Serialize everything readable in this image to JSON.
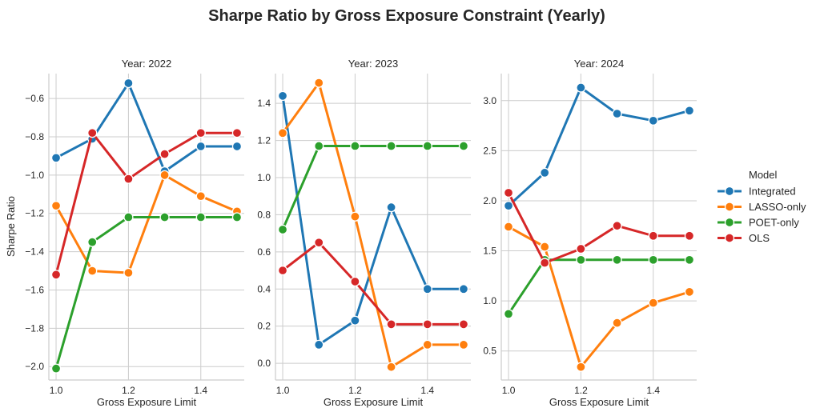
{
  "figure_title": "Sharpe Ratio by Gross Exposure Constraint (Yearly)",
  "shared_ylabel": "Sharpe Ratio",
  "legend": {
    "title": "Model",
    "placement": "right",
    "entries": [
      {
        "name": "Integrated",
        "color": "#1f77b4"
      },
      {
        "name": "LASSO-only",
        "color": "#ff7f0e"
      },
      {
        "name": "POET-only",
        "color": "#2ca02c"
      },
      {
        "name": "OLS",
        "color": "#d62728"
      }
    ]
  },
  "chart_data": [
    {
      "type": "line",
      "title": "Year: 2022",
      "xlabel": "Gross Exposure Limit",
      "ylabel": "Sharpe Ratio",
      "x": [
        1.0,
        1.1,
        1.2,
        1.3,
        1.4,
        1.5
      ],
      "xlim": [
        0.98,
        1.52
      ],
      "ylim": [
        -2.07,
        -0.47
      ],
      "xticks": [
        1.0,
        1.2,
        1.4
      ],
      "xtick_labels": [
        "1.0",
        "1.2",
        "1.4"
      ],
      "yticks": [
        -2.0,
        -1.8,
        -1.6,
        -1.4,
        -1.2,
        -1.0,
        -0.8,
        -0.6
      ],
      "ytick_labels": [
        "−2.0",
        "−1.8",
        "−1.6",
        "−1.4",
        "−1.2",
        "−1.0",
        "−0.8",
        "−0.6"
      ],
      "grid": true,
      "series": [
        {
          "name": "Integrated",
          "color": "#1f77b4",
          "values": [
            -0.91,
            -0.81,
            -0.52,
            -0.98,
            -0.85,
            -0.85
          ]
        },
        {
          "name": "LASSO-only",
          "color": "#ff7f0e",
          "values": [
            -1.16,
            -1.5,
            -1.51,
            -1.0,
            -1.11,
            -1.19
          ]
        },
        {
          "name": "POET-only",
          "color": "#2ca02c",
          "values": [
            -2.01,
            -1.35,
            -1.22,
            -1.22,
            -1.22,
            -1.22
          ]
        },
        {
          "name": "OLS",
          "color": "#d62728",
          "values": [
            -1.52,
            -0.78,
            -1.02,
            -0.89,
            -0.78,
            -0.78
          ]
        }
      ]
    },
    {
      "type": "line",
      "title": "Year: 2023",
      "xlabel": "Gross Exposure Limit",
      "ylabel": "",
      "x": [
        1.0,
        1.1,
        1.2,
        1.3,
        1.4,
        1.5
      ],
      "xlim": [
        0.98,
        1.52
      ],
      "ylim": [
        -0.09,
        1.56
      ],
      "xticks": [
        1.0,
        1.2,
        1.4
      ],
      "xtick_labels": [
        "1.0",
        "1.2",
        "1.4"
      ],
      "yticks": [
        0.0,
        0.2,
        0.4,
        0.6,
        0.8,
        1.0,
        1.2,
        1.4
      ],
      "ytick_labels": [
        "0.0",
        "0.2",
        "0.4",
        "0.6",
        "0.8",
        "1.0",
        "1.2",
        "1.4"
      ],
      "grid": true,
      "series": [
        {
          "name": "Integrated",
          "color": "#1f77b4",
          "values": [
            1.44,
            0.1,
            0.23,
            0.84,
            0.4,
            0.4
          ]
        },
        {
          "name": "LASSO-only",
          "color": "#ff7f0e",
          "values": [
            1.24,
            1.51,
            0.79,
            -0.02,
            0.1,
            0.1
          ]
        },
        {
          "name": "POET-only",
          "color": "#2ca02c",
          "values": [
            0.72,
            1.17,
            1.17,
            1.17,
            1.17,
            1.17
          ]
        },
        {
          "name": "OLS",
          "color": "#d62728",
          "values": [
            0.5,
            0.65,
            0.44,
            0.21,
            0.21,
            0.21
          ]
        }
      ]
    },
    {
      "type": "line",
      "title": "Year: 2024",
      "xlabel": "Gross Exposure Limit",
      "ylabel": "",
      "x": [
        1.0,
        1.1,
        1.2,
        1.3,
        1.4,
        1.5
      ],
      "xlim": [
        0.98,
        1.52
      ],
      "ylim": [
        0.21,
        3.27
      ],
      "xticks": [
        1.0,
        1.2,
        1.4
      ],
      "xtick_labels": [
        "1.0",
        "1.2",
        "1.4"
      ],
      "yticks": [
        0.5,
        1.0,
        1.5,
        2.0,
        2.5,
        3.0
      ],
      "ytick_labels": [
        "0.5",
        "1.0",
        "1.5",
        "2.0",
        "2.5",
        "3.0"
      ],
      "grid": true,
      "series": [
        {
          "name": "Integrated",
          "color": "#1f77b4",
          "values": [
            1.95,
            2.28,
            3.13,
            2.87,
            2.8,
            2.9
          ]
        },
        {
          "name": "LASSO-only",
          "color": "#ff7f0e",
          "values": [
            1.74,
            1.54,
            0.34,
            0.78,
            0.98,
            1.09
          ]
        },
        {
          "name": "POET-only",
          "color": "#2ca02c",
          "values": [
            0.87,
            1.41,
            1.41,
            1.41,
            1.41,
            1.41
          ]
        },
        {
          "name": "OLS",
          "color": "#d62728",
          "values": [
            2.08,
            1.38,
            1.52,
            1.75,
            1.65,
            1.65
          ]
        }
      ]
    }
  ]
}
